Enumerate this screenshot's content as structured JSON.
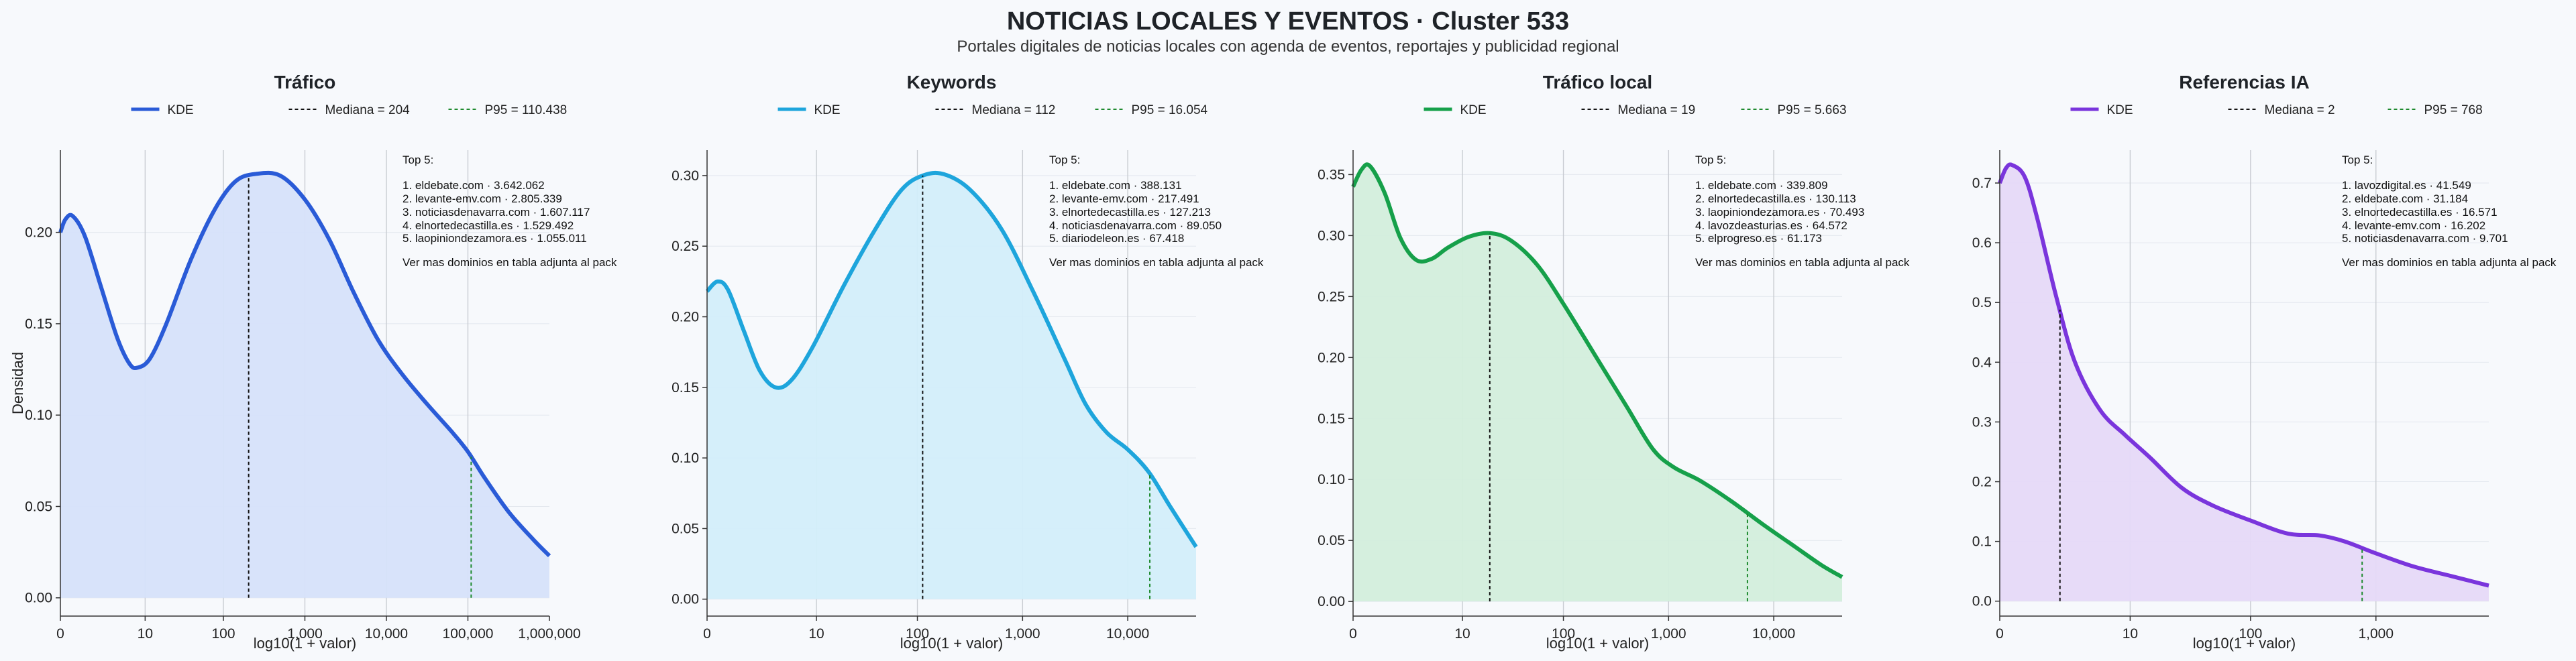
{
  "title": "NOTICIAS LOCALES Y EVENTOS · Cluster 533",
  "subtitle": "Portales digitales de noticias locales con agenda de eventos, reportajes y publicidad regional",
  "chart_data": [
    {
      "type": "area",
      "title": "Tráfico",
      "xlabel": "log10(1 + valor)",
      "ylabel": "Densidad",
      "color": "#2a5bd7",
      "fill": "#d6e2fa",
      "xlim": [
        0,
        6.0
      ],
      "ylim": [
        -0.01,
        0.245
      ],
      "xticks": [
        {
          "v": 0,
          "label": "0"
        },
        {
          "v": 1.04,
          "label": "10"
        },
        {
          "v": 2.0,
          "label": "100"
        },
        {
          "v": 3.0,
          "label": "1,000"
        },
        {
          "v": 4.0,
          "label": "10,000"
        },
        {
          "v": 5.0,
          "label": "100,000"
        },
        {
          "v": 6.0,
          "label": "1,000,000"
        }
      ],
      "yticks": [
        {
          "v": 0,
          "label": "0.00"
        },
        {
          "v": 0.05,
          "label": "0.05"
        },
        {
          "v": 0.1,
          "label": "0.10"
        },
        {
          "v": 0.15,
          "label": "0.15"
        },
        {
          "v": 0.2,
          "label": "0.20"
        }
      ],
      "kde": [
        [
          0,
          0.2
        ],
        [
          0.06,
          0.207
        ],
        [
          0.15,
          0.209
        ],
        [
          0.3,
          0.198
        ],
        [
          0.5,
          0.17
        ],
        [
          0.7,
          0.142
        ],
        [
          0.85,
          0.128
        ],
        [
          0.95,
          0.126
        ],
        [
          1.1,
          0.131
        ],
        [
          1.3,
          0.15
        ],
        [
          1.6,
          0.185
        ],
        [
          1.9,
          0.213
        ],
        [
          2.15,
          0.228
        ],
        [
          2.4,
          0.232
        ],
        [
          2.7,
          0.231
        ],
        [
          3.0,
          0.218
        ],
        [
          3.3,
          0.196
        ],
        [
          3.6,
          0.167
        ],
        [
          3.9,
          0.141
        ],
        [
          4.2,
          0.122
        ],
        [
          4.5,
          0.106
        ],
        [
          4.8,
          0.091
        ],
        [
          5.0,
          0.08
        ],
        [
          5.2,
          0.066
        ],
        [
          5.5,
          0.047
        ],
        [
          5.8,
          0.032
        ],
        [
          6.0,
          0.023
        ]
      ],
      "median": {
        "x": 2.31,
        "label": "Mediana = 204"
      },
      "p95": {
        "x": 5.04,
        "label": "P95 = 110.438"
      },
      "legend": [
        "KDE",
        "Mediana = 204",
        "P95 = 110.438"
      ],
      "top5": [
        "Top 5:",
        "1. eldebate.com · 3.642.062",
        "2. levante-emv.com · 2.805.339",
        "3. noticiasdenavarra.com · 1.607.117",
        "4. elnortedecastilla.es · 1.529.492",
        "5. laopiniondezamora.es · 1.055.011",
        "Ver mas dominios en tabla adjunta al pack"
      ]
    },
    {
      "type": "area",
      "title": "Keywords",
      "xlabel": "log10(1 + valor)",
      "ylabel": "",
      "color": "#1ea5dc",
      "fill": "#d3eefa",
      "xlim": [
        0,
        4.65
      ],
      "ylim": [
        -0.012,
        0.318
      ],
      "xticks": [
        {
          "v": 0,
          "label": "0"
        },
        {
          "v": 1.04,
          "label": "10"
        },
        {
          "v": 2.0,
          "label": "100"
        },
        {
          "v": 3.0,
          "label": "1,000"
        },
        {
          "v": 4.0,
          "label": "10,000"
        }
      ],
      "yticks": [
        {
          "v": 0,
          "label": "0.00"
        },
        {
          "v": 0.05,
          "label": "0.05"
        },
        {
          "v": 0.1,
          "label": "0.10"
        },
        {
          "v": 0.15,
          "label": "0.15"
        },
        {
          "v": 0.2,
          "label": "0.20"
        },
        {
          "v": 0.25,
          "label": "0.25"
        },
        {
          "v": 0.3,
          "label": "0.30"
        }
      ],
      "kde": [
        [
          0,
          0.218
        ],
        [
          0.1,
          0.225
        ],
        [
          0.2,
          0.219
        ],
        [
          0.35,
          0.19
        ],
        [
          0.5,
          0.162
        ],
        [
          0.65,
          0.15
        ],
        [
          0.8,
          0.155
        ],
        [
          1.0,
          0.178
        ],
        [
          1.3,
          0.222
        ],
        [
          1.6,
          0.262
        ],
        [
          1.85,
          0.29
        ],
        [
          2.05,
          0.3
        ],
        [
          2.25,
          0.301
        ],
        [
          2.5,
          0.29
        ],
        [
          2.8,
          0.262
        ],
        [
          3.1,
          0.218
        ],
        [
          3.4,
          0.17
        ],
        [
          3.6,
          0.138
        ],
        [
          3.8,
          0.118
        ],
        [
          4.0,
          0.106
        ],
        [
          4.2,
          0.09
        ],
        [
          4.4,
          0.066
        ],
        [
          4.65,
          0.037
        ]
      ],
      "median": {
        "x": 2.05,
        "label": "Mediana = 112"
      },
      "p95": {
        "x": 4.21,
        "label": "P95 = 16.054"
      },
      "legend": [
        "KDE",
        "Mediana = 112",
        "P95 = 16.054"
      ],
      "top5": [
        "Top 5:",
        "1. eldebate.com · 388.131",
        "2. levante-emv.com · 217.491",
        "3. elnortedecastilla.es · 127.213",
        "4. noticiasdenavarra.com · 89.050",
        "5. diariodeleon.es · 67.418",
        "Ver mas dominios en tabla adjunta al pack"
      ]
    },
    {
      "type": "area",
      "title": "Tráfico local",
      "xlabel": "log10(1 + valor)",
      "ylabel": "",
      "color": "#16a04a",
      "fill": "#d3eedc",
      "xlim": [
        0,
        4.65
      ],
      "ylim": [
        -0.012,
        0.37
      ],
      "xticks": [
        {
          "v": 0,
          "label": "0"
        },
        {
          "v": 1.04,
          "label": "10"
        },
        {
          "v": 2.0,
          "label": "100"
        },
        {
          "v": 3.0,
          "label": "1,000"
        },
        {
          "v": 4.0,
          "label": "10,000"
        }
      ],
      "yticks": [
        {
          "v": 0,
          "label": "0.00"
        },
        {
          "v": 0.05,
          "label": "0.05"
        },
        {
          "v": 0.1,
          "label": "0.10"
        },
        {
          "v": 0.15,
          "label": "0.15"
        },
        {
          "v": 0.2,
          "label": "0.20"
        },
        {
          "v": 0.25,
          "label": "0.25"
        },
        {
          "v": 0.3,
          "label": "0.30"
        },
        {
          "v": 0.35,
          "label": "0.35"
        }
      ],
      "kde": [
        [
          0,
          0.34
        ],
        [
          0.08,
          0.354
        ],
        [
          0.16,
          0.357
        ],
        [
          0.3,
          0.335
        ],
        [
          0.45,
          0.298
        ],
        [
          0.6,
          0.28
        ],
        [
          0.75,
          0.281
        ],
        [
          0.9,
          0.29
        ],
        [
          1.1,
          0.299
        ],
        [
          1.3,
          0.302
        ],
        [
          1.5,
          0.296
        ],
        [
          1.75,
          0.276
        ],
        [
          2.0,
          0.244
        ],
        [
          2.3,
          0.202
        ],
        [
          2.6,
          0.16
        ],
        [
          2.85,
          0.125
        ],
        [
          3.05,
          0.11
        ],
        [
          3.3,
          0.099
        ],
        [
          3.6,
          0.082
        ],
        [
          3.9,
          0.063
        ],
        [
          4.2,
          0.045
        ],
        [
          4.45,
          0.03
        ],
        [
          4.65,
          0.02
        ]
      ],
      "median": {
        "x": 1.3,
        "label": "Mediana = 19"
      },
      "p95": {
        "x": 3.75,
        "label": "P95 = 5.663"
      },
      "legend": [
        "KDE",
        "Mediana = 19",
        "P95 = 5.663"
      ],
      "top5": [
        "Top 5:",
        "1. eldebate.com · 339.809",
        "2. elnortedecastilla.es · 130.113",
        "3. laopiniondezamora.es · 70.493",
        "4. lavozdeasturias.es · 64.572",
        "5. elprogreso.es · 61.173",
        "Ver mas dominios en tabla adjunta al pack"
      ]
    },
    {
      "type": "area",
      "title": "Referencias IA",
      "xlabel": "log10(1 + valor)",
      "ylabel": "",
      "color": "#7a35dc",
      "fill": "#e6d9f8",
      "xlim": [
        0,
        3.9
      ],
      "ylim": [
        -0.025,
        0.755
      ],
      "xticks": [
        {
          "v": 0,
          "label": "0"
        },
        {
          "v": 1.04,
          "label": "10"
        },
        {
          "v": 2.0,
          "label": "100"
        },
        {
          "v": 3.0,
          "label": "1,000"
        }
      ],
      "yticks": [
        {
          "v": 0,
          "label": "0.0"
        },
        {
          "v": 0.1,
          "label": "0.1"
        },
        {
          "v": 0.2,
          "label": "0.2"
        },
        {
          "v": 0.3,
          "label": "0.3"
        },
        {
          "v": 0.4,
          "label": "0.4"
        },
        {
          "v": 0.5,
          "label": "0.5"
        },
        {
          "v": 0.6,
          "label": "0.6"
        },
        {
          "v": 0.7,
          "label": "0.7"
        }
      ],
      "kde": [
        [
          0,
          0.7
        ],
        [
          0.05,
          0.725
        ],
        [
          0.1,
          0.73
        ],
        [
          0.2,
          0.71
        ],
        [
          0.3,
          0.64
        ],
        [
          0.45,
          0.51
        ],
        [
          0.6,
          0.4
        ],
        [
          0.8,
          0.32
        ],
        [
          1.0,
          0.278
        ],
        [
          1.2,
          0.24
        ],
        [
          1.45,
          0.19
        ],
        [
          1.7,
          0.16
        ],
        [
          2.0,
          0.135
        ],
        [
          2.3,
          0.113
        ],
        [
          2.55,
          0.11
        ],
        [
          2.75,
          0.1
        ],
        [
          3.0,
          0.08
        ],
        [
          3.3,
          0.058
        ],
        [
          3.6,
          0.042
        ],
        [
          3.9,
          0.026
        ]
      ],
      "median": {
        "x": 0.48,
        "label": "Mediana = 2"
      },
      "p95": {
        "x": 2.89,
        "label": "P95 = 768"
      },
      "legend": [
        "KDE",
        "Mediana = 2",
        "P95 = 768"
      ],
      "top5": [
        "Top 5:",
        "1. lavozdigital.es · 41.549",
        "2. eldebate.com · 31.184",
        "3. elnortedecastilla.es · 16.571",
        "4. levante-emv.com · 16.202",
        "5. noticiasdenavarra.com · 9.701",
        "Ver mas dominios en tabla adjunta al pack"
      ]
    }
  ]
}
